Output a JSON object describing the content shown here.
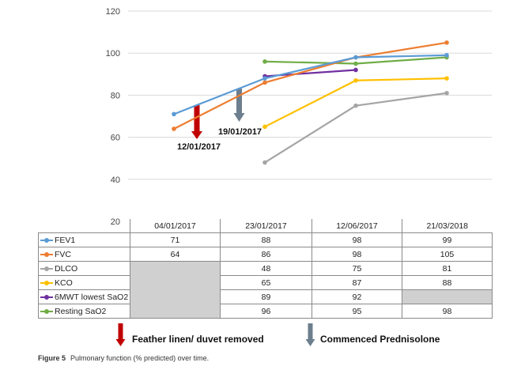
{
  "chart_data": {
    "type": "line",
    "categories": [
      "04/01/2017",
      "23/01/2017",
      "12/06/2017",
      "21/03/2018"
    ],
    "ylim": [
      20,
      120
    ],
    "yticks": [
      20,
      40,
      60,
      80,
      100,
      120
    ],
    "grid": true,
    "series": [
      {
        "name": "FEV1",
        "color": "#5b9bd5",
        "values": [
          71,
          88,
          98,
          99
        ],
        "labels": [
          "71",
          "88",
          "98",
          "99"
        ]
      },
      {
        "name": "FVC",
        "color": "#ed7d31",
        "values": [
          64,
          86,
          98,
          105
        ],
        "labels": [
          "64",
          "86",
          "98",
          "105"
        ]
      },
      {
        "name": "DLCO",
        "color": "#a5a5a5",
        "values": [
          null,
          48,
          75,
          81
        ],
        "labels": [
          "",
          "48",
          "75",
          "81"
        ]
      },
      {
        "name": "KCO",
        "color": "#ffc000",
        "values": [
          null,
          65,
          87,
          88
        ],
        "labels": [
          "",
          "65",
          "87",
          "88"
        ]
      },
      {
        "name": "6MWT lowest SaO2",
        "color": "#7030a0",
        "values": [
          null,
          89,
          92,
          null
        ],
        "labels": [
          "",
          "89",
          "92",
          ""
        ]
      },
      {
        "name": "Resting SaO2",
        "color": "#70ad47",
        "values": [
          null,
          96,
          95,
          98
        ],
        "labels": [
          "",
          "96",
          "95",
          "98"
        ]
      }
    ],
    "annotations": [
      {
        "label": "12/01/2017",
        "arrow_color": "#c00000",
        "event": "Feather linen/ duvet removed"
      },
      {
        "label": "19/01/2017",
        "arrow_color": "#6d7f8e",
        "event": "Commenced Prednisolone"
      }
    ]
  },
  "legend": {
    "feather_label": "Feather linen/ duvet removed",
    "prednisolone_label": "Commenced Prednisolone"
  },
  "caption": {
    "figure": "Figure 5",
    "text": "Pulmonary function (% predicted) over time."
  }
}
